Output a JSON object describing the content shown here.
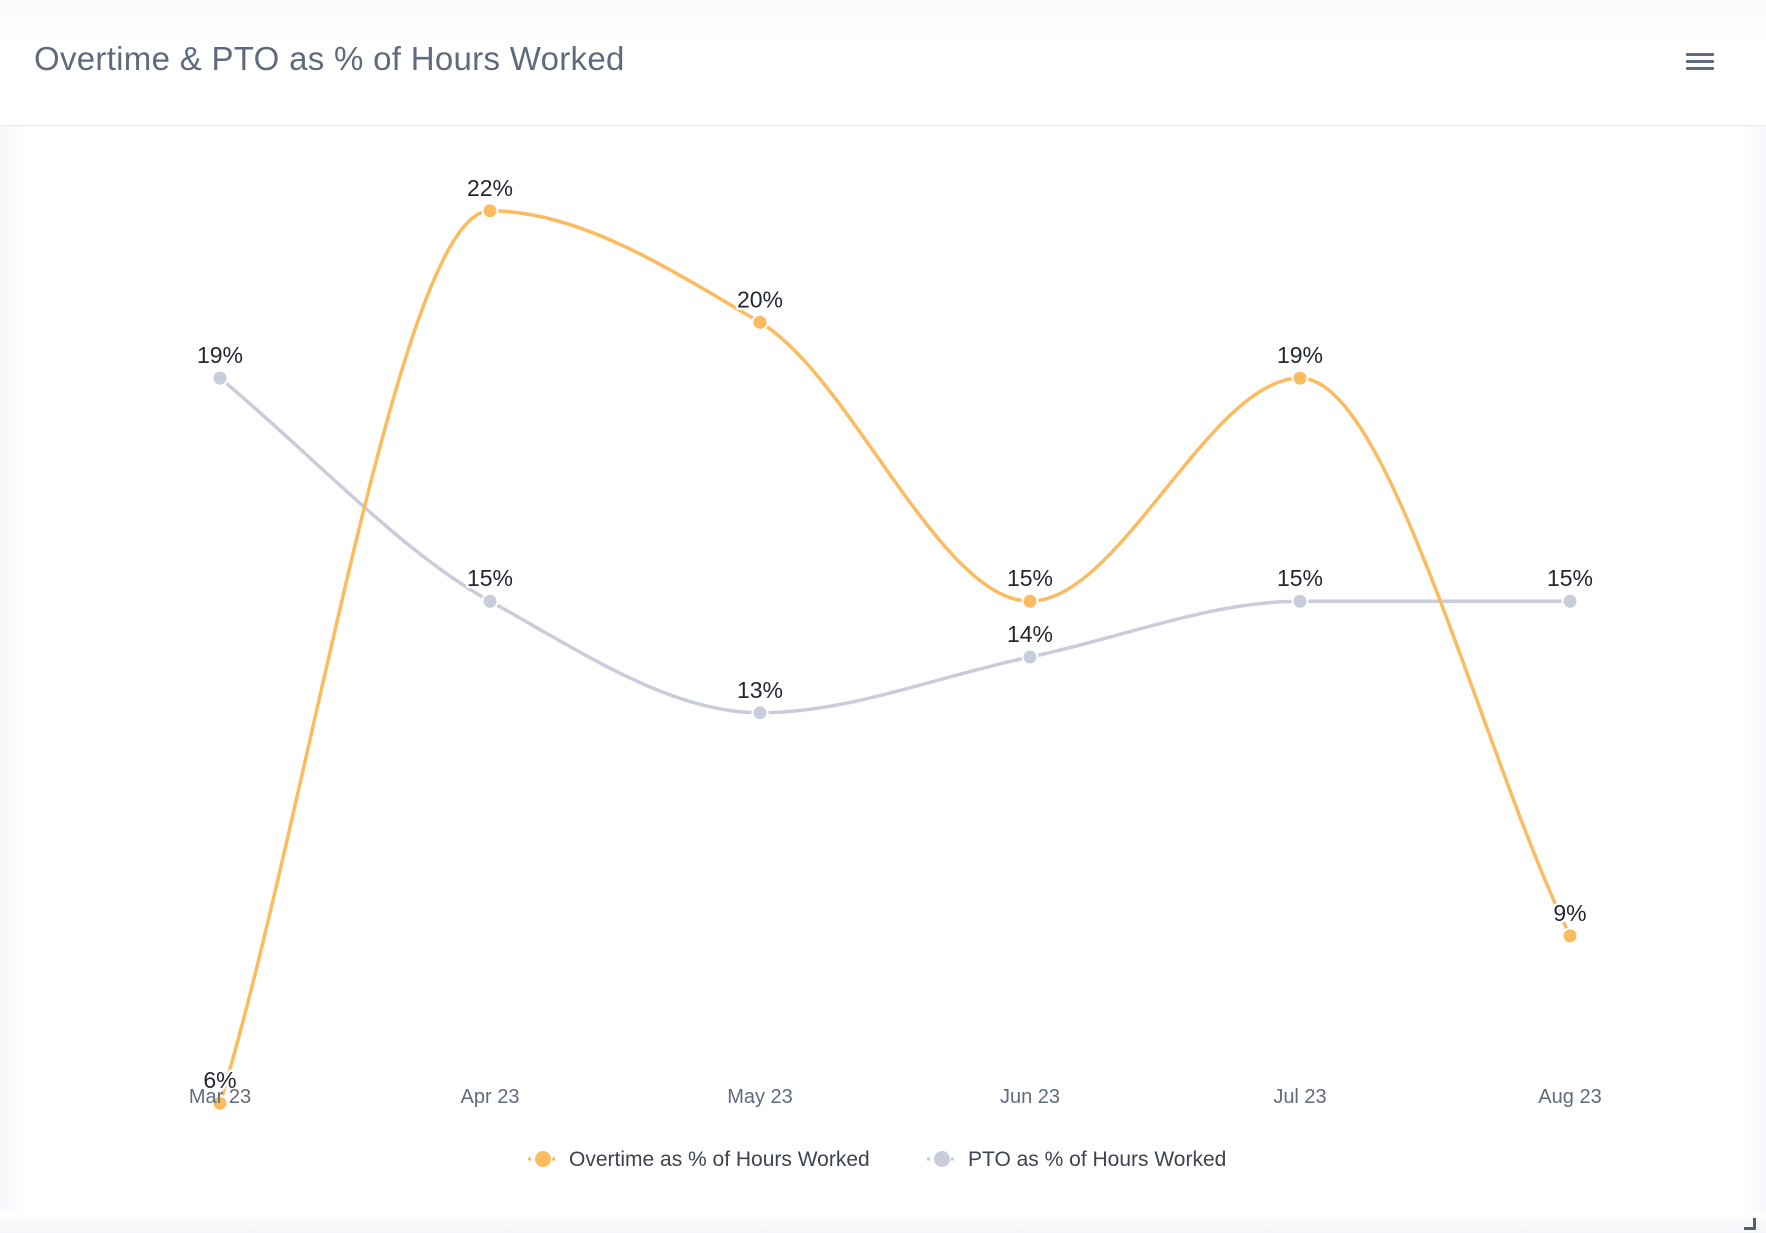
{
  "header": {
    "title": "Overtime & PTO as % of Hours Worked",
    "menu_icon": "hamburger-menu-icon"
  },
  "colors": {
    "overtime": "#fbbb5e",
    "pto": "#c9ccdb"
  },
  "chart_data": {
    "type": "line",
    "title": "Overtime & PTO as % of Hours Worked",
    "xlabel": "",
    "ylabel": "",
    "categories": [
      "Mar 23",
      "Apr 23",
      "May 23",
      "Jun 23",
      "Jul 23",
      "Aug 23"
    ],
    "ylim": [
      5,
      23
    ],
    "grid": false,
    "legend_position": "bottom-center",
    "series": [
      {
        "name": "Overtime as % of Hours Worked",
        "values": [
          6,
          22,
          20,
          15,
          19,
          9
        ],
        "labels": [
          "6%",
          "22%",
          "20%",
          "15%",
          "19%",
          "9%"
        ],
        "color": "#fbbb5e"
      },
      {
        "name": "PTO as % of Hours Worked",
        "values": [
          19,
          15,
          13,
          14,
          15,
          15
        ],
        "labels": [
          "19%",
          "15%",
          "13%",
          "14%",
          "15%",
          "15%"
        ],
        "color": "#c9ccdb"
      }
    ]
  }
}
